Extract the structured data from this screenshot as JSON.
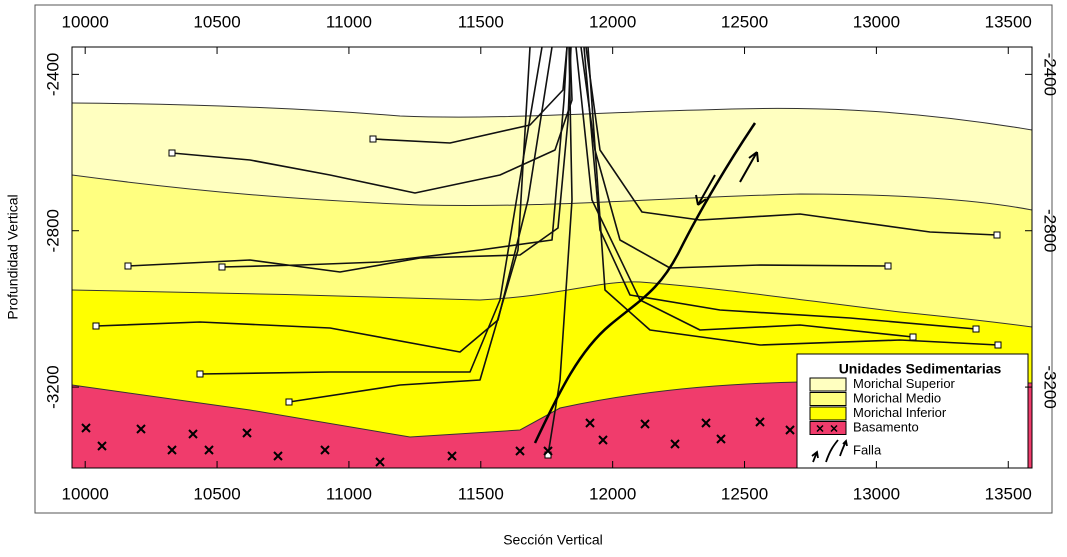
{
  "chart_data": {
    "type": "cross-section",
    "xlabel": "Sección Vertical",
    "ylabel": "Profundidad Vertical",
    "xlim": [
      9950,
      13590
    ],
    "xticks": [
      10000,
      10500,
      11000,
      11500,
      12000,
      12500,
      13000,
      13500
    ],
    "ylim": [
      -2330,
      -3407
    ],
    "yticks": [
      -2400,
      -2800,
      -3200
    ],
    "legend": {
      "title": "Unidades Sedimentarias",
      "position": "lower right"
    },
    "units": [
      {
        "name": "Morichal Superior",
        "color": "#ffffc0"
      },
      {
        "name": "Morichal Medio",
        "color": "#ffff80"
      },
      {
        "name": "Morichal Inferior",
        "color": "#ffff00"
      },
      {
        "name": "Basamento",
        "color": "#f03c6c"
      },
      {
        "name": "Falla",
        "color": "#000000"
      }
    ]
  }
}
